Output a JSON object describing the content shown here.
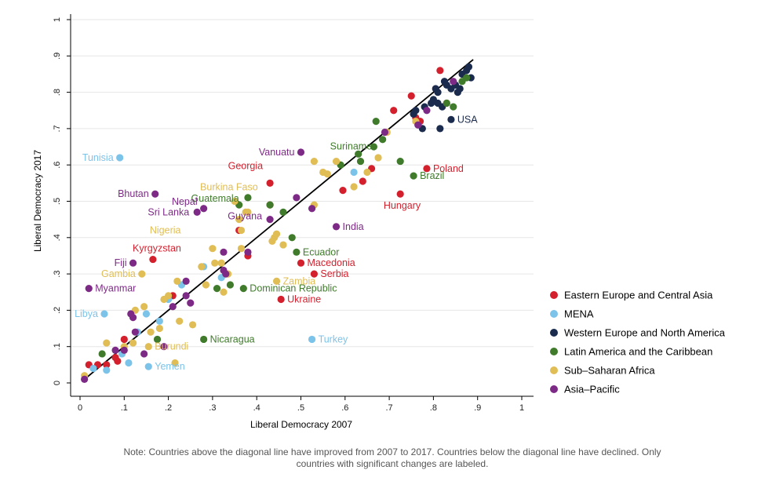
{
  "chart_data": {
    "type": "scatter",
    "xlabel": "Liberal Democracy 2007",
    "ylabel": "Liberal Democracy 2017",
    "xlim": [
      0,
      1
    ],
    "ylim": [
      0,
      1
    ],
    "xticks": [
      "0",
      ".1",
      ".2",
      ".3",
      ".4",
      ".5",
      ".6",
      ".7",
      ".8",
      ".9",
      "1"
    ],
    "yticks": [
      "0",
      ".1",
      ".2",
      ".3",
      ".4",
      ".5",
      ".6",
      ".7",
      ".8",
      ".9",
      "1"
    ],
    "grid": true,
    "diagonal_line": true,
    "legend_position": "right",
    "series": [
      {
        "name": "Eastern Europe and Central Asia",
        "color": "#d41f2d",
        "points": [
          {
            "x": 0.02,
            "y": 0.05
          },
          {
            "x": 0.04,
            "y": 0.05
          },
          {
            "x": 0.06,
            "y": 0.05
          },
          {
            "x": 0.08,
            "y": 0.07
          },
          {
            "x": 0.085,
            "y": 0.06
          },
          {
            "x": 0.1,
            "y": 0.12
          },
          {
            "x": 0.165,
            "y": 0.34,
            "label": "Kyrgyzstan"
          },
          {
            "x": 0.21,
            "y": 0.24
          },
          {
            "x": 0.36,
            "y": 0.42
          },
          {
            "x": 0.38,
            "y": 0.35
          },
          {
            "x": 0.43,
            "y": 0.55,
            "label": "Georgia"
          },
          {
            "x": 0.43,
            "y": 0.49
          },
          {
            "x": 0.455,
            "y": 0.23,
            "label": "Ukraine"
          },
          {
            "x": 0.5,
            "y": 0.33,
            "label": "Macedonia"
          },
          {
            "x": 0.53,
            "y": 0.3,
            "label": "Serbia"
          },
          {
            "x": 0.595,
            "y": 0.53
          },
          {
            "x": 0.64,
            "y": 0.555
          },
          {
            "x": 0.66,
            "y": 0.59
          },
          {
            "x": 0.71,
            "y": 0.75
          },
          {
            "x": 0.725,
            "y": 0.52,
            "label": "Hungary"
          },
          {
            "x": 0.75,
            "y": 0.79
          },
          {
            "x": 0.76,
            "y": 0.73
          },
          {
            "x": 0.77,
            "y": 0.72
          },
          {
            "x": 0.785,
            "y": 0.59,
            "label": "Poland"
          },
          {
            "x": 0.815,
            "y": 0.86
          },
          {
            "x": 0.83,
            "y": 0.77
          }
        ]
      },
      {
        "name": "MENA",
        "color": "#7cc3ea",
        "points": [
          {
            "x": 0.03,
            "y": 0.04
          },
          {
            "x": 0.06,
            "y": 0.035
          },
          {
            "x": 0.09,
            "y": 0.62,
            "label": "Tunisia"
          },
          {
            "x": 0.095,
            "y": 0.08
          },
          {
            "x": 0.11,
            "y": 0.055
          },
          {
            "x": 0.13,
            "y": 0.14
          },
          {
            "x": 0.15,
            "y": 0.19
          },
          {
            "x": 0.155,
            "y": 0.045,
            "label": "Yemen"
          },
          {
            "x": 0.055,
            "y": 0.19,
            "label": "Libya"
          },
          {
            "x": 0.18,
            "y": 0.17
          },
          {
            "x": 0.2,
            "y": 0.23
          },
          {
            "x": 0.23,
            "y": 0.27
          },
          {
            "x": 0.28,
            "y": 0.32
          },
          {
            "x": 0.32,
            "y": 0.29
          },
          {
            "x": 0.525,
            "y": 0.12,
            "label": "Turkey"
          },
          {
            "x": 0.62,
            "y": 0.58
          }
        ]
      },
      {
        "name": "Western Europe and North America",
        "color": "#1a2b4e",
        "points": [
          {
            "x": 0.755,
            "y": 0.74
          },
          {
            "x": 0.76,
            "y": 0.75
          },
          {
            "x": 0.775,
            "y": 0.7
          },
          {
            "x": 0.78,
            "y": 0.76
          },
          {
            "x": 0.795,
            "y": 0.77
          },
          {
            "x": 0.8,
            "y": 0.78
          },
          {
            "x": 0.805,
            "y": 0.81
          },
          {
            "x": 0.81,
            "y": 0.8
          },
          {
            "x": 0.81,
            "y": 0.77
          },
          {
            "x": 0.815,
            "y": 0.7
          },
          {
            "x": 0.82,
            "y": 0.76
          },
          {
            "x": 0.825,
            "y": 0.83
          },
          {
            "x": 0.83,
            "y": 0.82
          },
          {
            "x": 0.84,
            "y": 0.725,
            "label": "USA"
          },
          {
            "x": 0.84,
            "y": 0.81
          },
          {
            "x": 0.85,
            "y": 0.82
          },
          {
            "x": 0.855,
            "y": 0.8
          },
          {
            "x": 0.86,
            "y": 0.81
          },
          {
            "x": 0.865,
            "y": 0.85
          },
          {
            "x": 0.875,
            "y": 0.86
          },
          {
            "x": 0.88,
            "y": 0.87
          },
          {
            "x": 0.885,
            "y": 0.84
          }
        ]
      },
      {
        "name": "Latin America and the Caribbean",
        "color": "#3f7b2b",
        "points": [
          {
            "x": 0.05,
            "y": 0.08
          },
          {
            "x": 0.175,
            "y": 0.12
          },
          {
            "x": 0.28,
            "y": 0.12,
            "label": "Nicaragua"
          },
          {
            "x": 0.31,
            "y": 0.26
          },
          {
            "x": 0.34,
            "y": 0.27
          },
          {
            "x": 0.36,
            "y": 0.49,
            "label": "Guatemala"
          },
          {
            "x": 0.37,
            "y": 0.26,
            "label": "Dominican Republic"
          },
          {
            "x": 0.38,
            "y": 0.51
          },
          {
            "x": 0.43,
            "y": 0.49
          },
          {
            "x": 0.46,
            "y": 0.47
          },
          {
            "x": 0.48,
            "y": 0.4
          },
          {
            "x": 0.49,
            "y": 0.36,
            "label": "Ecuador"
          },
          {
            "x": 0.59,
            "y": 0.6
          },
          {
            "x": 0.63,
            "y": 0.63
          },
          {
            "x": 0.635,
            "y": 0.61
          },
          {
            "x": 0.665,
            "y": 0.65
          },
          {
            "x": 0.67,
            "y": 0.72
          },
          {
            "x": 0.685,
            "y": 0.67
          },
          {
            "x": 0.725,
            "y": 0.61,
            "label": "Suriname"
          },
          {
            "x": 0.755,
            "y": 0.57,
            "label": "Brazil"
          },
          {
            "x": 0.83,
            "y": 0.77
          },
          {
            "x": 0.845,
            "y": 0.76
          },
          {
            "x": 0.865,
            "y": 0.83
          },
          {
            "x": 0.875,
            "y": 0.84
          }
        ]
      },
      {
        "name": "Sub–Saharan Africa",
        "color": "#e0bd55",
        "points": [
          {
            "x": 0.01,
            "y": 0.02
          },
          {
            "x": 0.06,
            "y": 0.11
          },
          {
            "x": 0.1,
            "y": 0.1
          },
          {
            "x": 0.12,
            "y": 0.11
          },
          {
            "x": 0.125,
            "y": 0.2
          },
          {
            "x": 0.14,
            "y": 0.3,
            "label": "Gambia"
          },
          {
            "x": 0.145,
            "y": 0.21
          },
          {
            "x": 0.155,
            "y": 0.1,
            "label": "Burundi"
          },
          {
            "x": 0.16,
            "y": 0.14
          },
          {
            "x": 0.18,
            "y": 0.15
          },
          {
            "x": 0.19,
            "y": 0.23
          },
          {
            "x": 0.2,
            "y": 0.24
          },
          {
            "x": 0.215,
            "y": 0.055
          },
          {
            "x": 0.22,
            "y": 0.28
          },
          {
            "x": 0.225,
            "y": 0.17
          },
          {
            "x": 0.255,
            "y": 0.16
          },
          {
            "x": 0.275,
            "y": 0.32
          },
          {
            "x": 0.285,
            "y": 0.27
          },
          {
            "x": 0.3,
            "y": 0.37
          },
          {
            "x": 0.305,
            "y": 0.33
          },
          {
            "x": 0.32,
            "y": 0.33
          },
          {
            "x": 0.325,
            "y": 0.25
          },
          {
            "x": 0.335,
            "y": 0.3
          },
          {
            "x": 0.35,
            "y": 0.5,
            "label": "Burkina Faso"
          },
          {
            "x": 0.36,
            "y": 0.45
          },
          {
            "x": 0.365,
            "y": 0.37
          },
          {
            "x": 0.375,
            "y": 0.47
          },
          {
            "x": 0.365,
            "y": 0.42,
            "label": "Nigeria"
          },
          {
            "x": 0.38,
            "y": 0.47
          },
          {
            "x": 0.435,
            "y": 0.39
          },
          {
            "x": 0.44,
            "y": 0.4
          },
          {
            "x": 0.445,
            "y": 0.41
          },
          {
            "x": 0.445,
            "y": 0.28,
            "label": "Zambia"
          },
          {
            "x": 0.46,
            "y": 0.38
          },
          {
            "x": 0.53,
            "y": 0.49
          },
          {
            "x": 0.53,
            "y": 0.61
          },
          {
            "x": 0.55,
            "y": 0.58
          },
          {
            "x": 0.56,
            "y": 0.575
          },
          {
            "x": 0.58,
            "y": 0.61
          },
          {
            "x": 0.62,
            "y": 0.54
          },
          {
            "x": 0.65,
            "y": 0.58
          },
          {
            "x": 0.675,
            "y": 0.62
          },
          {
            "x": 0.695,
            "y": 0.69
          },
          {
            "x": 0.76,
            "y": 0.72
          }
        ]
      },
      {
        "name": "Asia–Pacific",
        "color": "#7d2a86",
        "points": [
          {
            "x": 0.01,
            "y": 0.01
          },
          {
            "x": 0.02,
            "y": 0.26,
            "label": "Myanmar"
          },
          {
            "x": 0.08,
            "y": 0.09
          },
          {
            "x": 0.1,
            "y": 0.09
          },
          {
            "x": 0.115,
            "y": 0.19
          },
          {
            "x": 0.12,
            "y": 0.33,
            "label": "Fiji"
          },
          {
            "x": 0.12,
            "y": 0.18
          },
          {
            "x": 0.125,
            "y": 0.14
          },
          {
            "x": 0.145,
            "y": 0.08
          },
          {
            "x": 0.17,
            "y": 0.52,
            "label": "Bhutan"
          },
          {
            "x": 0.19,
            "y": 0.1
          },
          {
            "x": 0.21,
            "y": 0.21
          },
          {
            "x": 0.24,
            "y": 0.24
          },
          {
            "x": 0.24,
            "y": 0.28
          },
          {
            "x": 0.25,
            "y": 0.22
          },
          {
            "x": 0.265,
            "y": 0.47,
            "label": "Sri Lanka"
          },
          {
            "x": 0.28,
            "y": 0.48,
            "label": "Nepal"
          },
          {
            "x": 0.325,
            "y": 0.36
          },
          {
            "x": 0.325,
            "y": 0.31
          },
          {
            "x": 0.33,
            "y": 0.3
          },
          {
            "x": 0.38,
            "y": 0.36
          },
          {
            "x": 0.43,
            "y": 0.45,
            "label": "Guyana"
          },
          {
            "x": 0.49,
            "y": 0.51
          },
          {
            "x": 0.5,
            "y": 0.635,
            "label": "Vanuatu"
          },
          {
            "x": 0.525,
            "y": 0.48
          },
          {
            "x": 0.58,
            "y": 0.43,
            "label": "India"
          },
          {
            "x": 0.69,
            "y": 0.69
          },
          {
            "x": 0.765,
            "y": 0.71
          },
          {
            "x": 0.785,
            "y": 0.75
          },
          {
            "x": 0.845,
            "y": 0.83
          }
        ]
      }
    ],
    "labels": [
      {
        "text": "Tunisia",
        "series": 1,
        "anchor": "end",
        "dx": -8,
        "dy": 4
      },
      {
        "text": "Vanuatu",
        "series": 5,
        "anchor": "end",
        "dx": -8,
        "dy": 4
      },
      {
        "text": "Suriname",
        "series": 3,
        "anchor": "end",
        "dx": -36,
        "dy": -15
      },
      {
        "text": "USA",
        "series": 2,
        "anchor": "start",
        "dx": 8,
        "dy": 4
      },
      {
        "text": "Georgia",
        "series": 0,
        "anchor": "end",
        "dx": -9,
        "dy": -18
      },
      {
        "text": "Poland",
        "series": 0,
        "anchor": "start",
        "dx": 8,
        "dy": 4
      },
      {
        "text": "Brazil",
        "series": 3,
        "anchor": "start",
        "dx": 8,
        "dy": 4
      },
      {
        "text": "Bhutan",
        "series": 5,
        "anchor": "end",
        "dx": -8,
        "dy": 4
      },
      {
        "text": "Burkina Faso",
        "series": 4,
        "anchor": "start",
        "dx": -44,
        "dy": -14
      },
      {
        "text": "Guatemala",
        "series": 3,
        "anchor": "end",
        "dx": 0,
        "dy": -4
      },
      {
        "text": "Nepal",
        "series": 5,
        "anchor": "end",
        "dx": -8,
        "dy": -5
      },
      {
        "text": "Sri Lanka",
        "series": 5,
        "anchor": "end",
        "dx": -10,
        "dy": 4
      },
      {
        "text": "Guyana",
        "series": 5,
        "anchor": "end",
        "dx": -10,
        "dy": 0
      },
      {
        "text": "Hungary",
        "series": 0,
        "anchor": "end",
        "dx": 26,
        "dy": 19
      },
      {
        "text": "India",
        "series": 5,
        "anchor": "start",
        "dx": 8,
        "dy": 4
      },
      {
        "text": "Nigeria",
        "series": 4,
        "anchor": "end",
        "dx": -77,
        "dy": 4
      },
      {
        "text": "Kyrgyzstan",
        "series": 0,
        "anchor": "end",
        "dx": 36,
        "dy": -10
      },
      {
        "text": "Ecuador",
        "series": 3,
        "anchor": "start",
        "dx": 8,
        "dy": 4
      },
      {
        "text": "Macedonia",
        "series": 0,
        "anchor": "start",
        "dx": 8,
        "dy": 4
      },
      {
        "text": "Fiji",
        "series": 5,
        "anchor": "end",
        "dx": -8,
        "dy": 4
      },
      {
        "text": "Serbia",
        "series": 0,
        "anchor": "start",
        "dx": 8,
        "dy": 4
      },
      {
        "text": "Gambia",
        "series": 4,
        "anchor": "end",
        "dx": -8,
        "dy": 4
      },
      {
        "text": "Zambia",
        "series": 4,
        "anchor": "start",
        "dx": 8,
        "dy": 4
      },
      {
        "text": "Myanmar",
        "series": 5,
        "anchor": "start",
        "dx": 8,
        "dy": 4
      },
      {
        "text": "Dominican Republic",
        "series": 3,
        "anchor": "start",
        "dx": 8,
        "dy": 4
      },
      {
        "text": "Ukraine",
        "series": 0,
        "anchor": "start",
        "dx": 8,
        "dy": 4
      },
      {
        "text": "Libya",
        "series": 1,
        "anchor": "end",
        "dx": -8,
        "dy": 4
      },
      {
        "text": "Nicaragua",
        "series": 3,
        "anchor": "start",
        "dx": 8,
        "dy": 4
      },
      {
        "text": "Turkey",
        "series": 1,
        "anchor": "start",
        "dx": 8,
        "dy": 4
      },
      {
        "text": "Burundi",
        "series": 4,
        "anchor": "start",
        "dx": 8,
        "dy": 4
      },
      {
        "text": "Yemen",
        "series": 1,
        "anchor": "start",
        "dx": 8,
        "dy": 4
      }
    ]
  },
  "note": "Note: Countries above the diagonal line have improved from 2007 to 2017. Countries below the diagonal line have declined. Only countries with significant changes are labeled."
}
